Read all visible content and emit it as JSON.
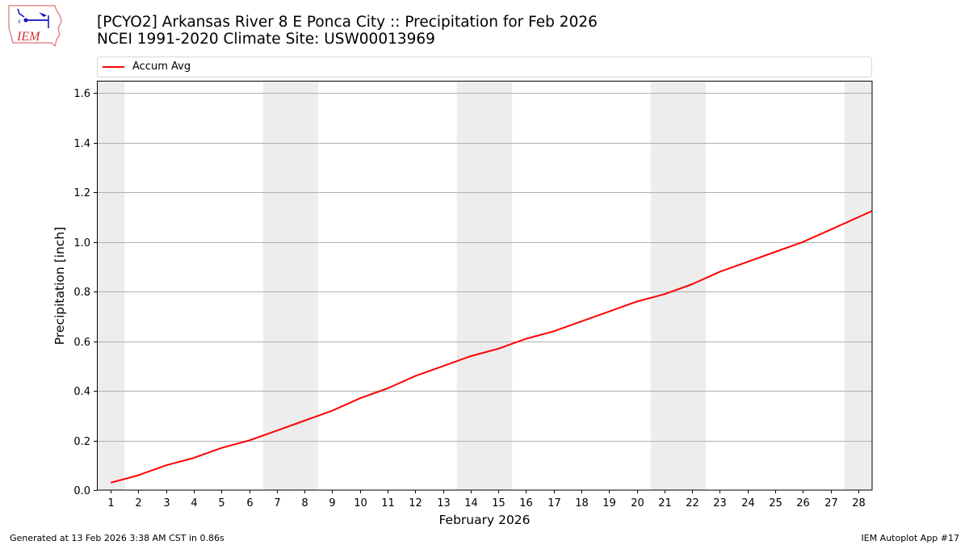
{
  "header": {
    "logo_text": "IEM",
    "title_line1": "[PCYO2] Arkansas River 8 E Ponca City :: Precipitation for Feb 2026",
    "title_line2": "NCEI 1991-2020 Climate Site: USW00013969"
  },
  "legend": {
    "items": [
      {
        "label": "Accum Avg",
        "color": "#ff0000"
      }
    ]
  },
  "footer": {
    "generated": "Generated at 13 Feb 2026 3:38 AM CST in 0.86s",
    "app": "IEM Autoplot App #17"
  },
  "colors": {
    "line": "#ff0000",
    "weekend_shade": "#ededed",
    "grid": "#b0b0b0",
    "axis": "#000000"
  },
  "chart_data": {
    "type": "line",
    "title": "[PCYO2] Arkansas River 8 E Ponca City :: Precipitation for Feb 2026",
    "subtitle": "NCEI 1991-2020 Climate Site: USW00013969",
    "xlabel": "February 2026",
    "ylabel": "Precipitation [inch]",
    "xlim": [
      0.5,
      28.5
    ],
    "ylim": [
      0,
      1.65
    ],
    "grid": {
      "x": false,
      "y": true
    },
    "legend_position": "top",
    "x": [
      1,
      2,
      3,
      4,
      5,
      6,
      7,
      8,
      9,
      10,
      11,
      12,
      13,
      14,
      15,
      16,
      17,
      18,
      19,
      20,
      21,
      22,
      23,
      24,
      25,
      26,
      27,
      28,
      29
    ],
    "x_tick_labels": [
      "1",
      "2",
      "3",
      "4",
      "5",
      "6",
      "7",
      "8",
      "9",
      "10",
      "11",
      "12",
      "13",
      "14",
      "15",
      "16",
      "17",
      "18",
      "19",
      "20",
      "21",
      "22",
      "23",
      "24",
      "25",
      "26",
      "27",
      "28"
    ],
    "y_ticks": [
      0.0,
      0.2,
      0.4,
      0.6,
      0.8,
      1.0,
      1.2,
      1.4,
      1.6
    ],
    "y_tick_labels": [
      "0.0",
      "0.2",
      "0.4",
      "0.6",
      "0.8",
      "1.0",
      "1.2",
      "1.4",
      "1.6"
    ],
    "series": [
      {
        "name": "Accum Avg",
        "color": "#ff0000",
        "values": [
          0.03,
          0.06,
          0.1,
          0.13,
          0.17,
          0.2,
          0.24,
          0.28,
          0.32,
          0.37,
          0.41,
          0.46,
          0.5,
          0.54,
          0.57,
          0.61,
          0.64,
          0.68,
          0.72,
          0.76,
          0.79,
          0.83,
          0.88,
          0.92,
          0.96,
          1.0,
          1.05,
          1.1,
          1.15
        ]
      }
    ],
    "weekend_spans": [
      [
        0.5,
        1.5
      ],
      [
        6.5,
        8.5
      ],
      [
        13.5,
        15.5
      ],
      [
        20.5,
        22.5
      ],
      [
        27.5,
        28.5
      ]
    ]
  }
}
